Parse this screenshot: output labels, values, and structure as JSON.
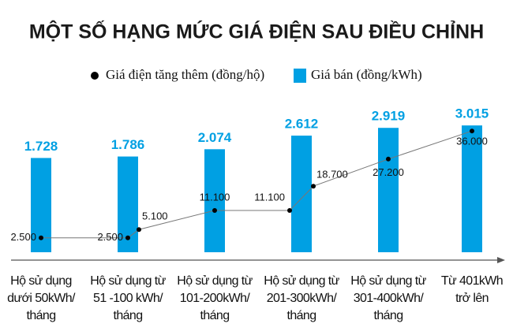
{
  "chart_data": {
    "type": "bar",
    "title": "MỘT SỐ HẠNG MỨC GIÁ ĐIỆN SAU ĐIỀU CHỈNH",
    "categories": [
      "Hộ sử dụng\ndưới 50kWh/\ntháng",
      "Hộ sử dụng từ\n51 -100 kWh/\ntháng",
      null,
      "Hộ sử dụng từ\n101-200kWh/\ntháng",
      "Hộ sử dụng từ\n201-300kWh/\ntháng",
      null,
      "Hộ sử dụng từ\n301-400kWh/\ntháng",
      "Từ 401kWh\ntrở lên"
    ],
    "ylim": [
      -2000,
      3300
    ],
    "y2lim": [
      -2000,
      40000
    ],
    "series": [
      {
        "name": "Giá điện tăng thêm (đồng/hộ)",
        "type": "line",
        "axis": "y2",
        "color": "#000000",
        "values": [
          2500,
          2500,
          5100,
          11100,
          11100,
          18700,
          27200,
          36000
        ],
        "value_labels": [
          "2.500",
          "2.500",
          "5.100",
          "11.100",
          "11.100",
          "18.700",
          "27.200",
          "36.000"
        ]
      },
      {
        "name": "Giá bán (đồng/kWh)",
        "type": "bar",
        "color": "#00a0e3",
        "values": [
          1728,
          1786,
          null,
          2074,
          2612,
          null,
          2919,
          3015
        ],
        "value_labels": [
          "1.728",
          "1.786",
          null,
          "2.074",
          "2.612",
          null,
          "2.919",
          "3.015"
        ]
      }
    ]
  }
}
